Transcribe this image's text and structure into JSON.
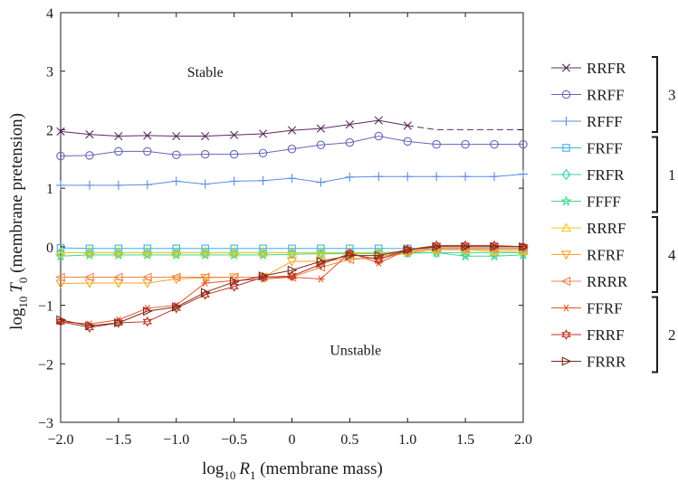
{
  "chart_data": {
    "type": "line",
    "xlabel_main": "log",
    "xlabel_sub": "10",
    "xlabel_var": "R",
    "xlabel_var_sub": "1",
    "xlabel_rest": " (membrane mass)",
    "ylabel_main": "log",
    "ylabel_sub": "10",
    "ylabel_var": "T",
    "ylabel_var_sub": "0",
    "ylabel_rest": " (membrane pretension)",
    "xlim": [
      -2.0,
      2.0
    ],
    "ylim": [
      -3,
      4
    ],
    "x_tick_values": [
      -2.0,
      -1.5,
      -1.0,
      -0.5,
      0,
      0.5,
      1.0,
      1.5,
      2.0
    ],
    "x_tick_labels": [
      "−2.0",
      "−1.5",
      "−1.0",
      "−0.5",
      "0",
      "0.5",
      "1.0",
      "1.5",
      "2.0"
    ],
    "y_tick_values": [
      -3,
      -2,
      -1,
      0,
      1,
      2,
      3,
      4
    ],
    "y_tick_labels": [
      "−3",
      "−2",
      "−1",
      "0",
      "1",
      "2",
      "3",
      "4"
    ],
    "grid": false,
    "legend_position": "right-outside",
    "annotations": [
      {
        "text": "Stable",
        "x": -0.75,
        "y": 2.9
      },
      {
        "text": "Unstable",
        "x": 0.55,
        "y": -1.85
      }
    ],
    "x": [
      -2.0,
      -1.75,
      -1.5,
      -1.25,
      -1.0,
      -0.75,
      -0.5,
      -0.25,
      0,
      0.25,
      0.5,
      0.75,
      1.0,
      1.25,
      1.5,
      1.75,
      2.0
    ],
    "series": [
      {
        "name": "RRFR",
        "group": "3",
        "color": "#5b2a5e",
        "marker": "x",
        "dash_from_x": 1.0,
        "values": [
          1.97,
          1.92,
          1.89,
          1.9,
          1.89,
          1.89,
          1.91,
          1.93,
          1.99,
          2.02,
          2.09,
          2.16,
          2.07,
          2.0,
          2.0,
          2.0,
          2.0
        ]
      },
      {
        "name": "RRFF",
        "group": "3",
        "color": "#6666b8",
        "marker": "circle",
        "values": [
          1.55,
          1.56,
          1.63,
          1.63,
          1.57,
          1.58,
          1.58,
          1.6,
          1.67,
          1.74,
          1.78,
          1.89,
          1.8,
          1.75,
          1.75,
          1.75,
          1.75
        ]
      },
      {
        "name": "RFFF",
        "group": "3",
        "color": "#5b8de0",
        "marker": "plus",
        "values": [
          1.05,
          1.05,
          1.05,
          1.06,
          1.12,
          1.07,
          1.12,
          1.13,
          1.17,
          1.1,
          1.19,
          1.2,
          1.2,
          1.2,
          1.2,
          1.2,
          1.24
        ]
      },
      {
        "name": "FRFF",
        "group": "1",
        "color": "#3fb0e0",
        "marker": "square",
        "values": [
          -0.02,
          -0.03,
          -0.03,
          -0.03,
          -0.03,
          -0.03,
          -0.03,
          -0.03,
          -0.03,
          -0.03,
          -0.03,
          -0.03,
          -0.03,
          -0.03,
          -0.03,
          -0.03,
          -0.03
        ]
      },
      {
        "name": "FRFR",
        "group": "1",
        "color": "#35d0b5",
        "marker": "diamond",
        "values": [
          -0.1,
          -0.1,
          -0.1,
          -0.1,
          -0.1,
          -0.1,
          -0.1,
          -0.1,
          -0.1,
          -0.1,
          -0.1,
          -0.1,
          -0.1,
          -0.1,
          -0.1,
          -0.1,
          -0.1
        ]
      },
      {
        "name": "FFFF",
        "group": "1",
        "color": "#3ed68a",
        "marker": "star",
        "values": [
          -0.16,
          -0.14,
          -0.14,
          -0.14,
          -0.14,
          -0.14,
          -0.14,
          -0.14,
          -0.13,
          -0.12,
          -0.12,
          -0.12,
          -0.11,
          -0.1,
          -0.16,
          -0.16,
          -0.14
        ]
      },
      {
        "name": "RRRF",
        "group": "4",
        "color": "#f2c81c",
        "marker": "triangle-up",
        "values": [
          -0.1,
          -0.1,
          -0.1,
          -0.1,
          -0.1,
          -0.1,
          -0.1,
          -0.1,
          -0.1,
          -0.1,
          -0.1,
          -0.1,
          -0.08,
          -0.05,
          -0.05,
          -0.08,
          -0.08
        ]
      },
      {
        "name": "RFRF",
        "group": "4",
        "color": "#f5a623",
        "marker": "triangle-down",
        "values": [
          -0.63,
          -0.62,
          -0.62,
          -0.62,
          -0.55,
          -0.53,
          -0.52,
          -0.52,
          -0.25,
          -0.25,
          -0.2,
          -0.2,
          -0.1,
          -0.05,
          -0.05,
          -0.05,
          -0.05
        ]
      },
      {
        "name": "RRRR",
        "group": "4",
        "color": "#ee8550",
        "marker": "triangle-left",
        "values": [
          -0.52,
          -0.52,
          -0.52,
          -0.52,
          -0.52,
          -0.52,
          -0.52,
          -0.52,
          -0.52,
          -0.35,
          -0.22,
          -0.18,
          -0.07,
          -0.03,
          -0.03,
          -0.03,
          -0.03
        ]
      },
      {
        "name": "FFRF",
        "group": "2",
        "color": "#e5532a",
        "marker": "asterisk",
        "values": [
          -1.28,
          -1.32,
          -1.25,
          -1.05,
          -1.0,
          -0.62,
          -0.58,
          -0.55,
          -0.52,
          -0.55,
          -0.1,
          -0.28,
          -0.05,
          0.02,
          0.02,
          0.02,
          0.0
        ]
      },
      {
        "name": "FRRF",
        "group": "2",
        "color": "#b8301f",
        "marker": "hexagram",
        "values": [
          -1.28,
          -1.38,
          -1.3,
          -1.28,
          -1.05,
          -0.82,
          -0.68,
          -0.52,
          -0.5,
          -0.3,
          -0.12,
          -0.22,
          -0.05,
          0.02,
          0.02,
          0.02,
          0.0
        ]
      },
      {
        "name": "FRRR",
        "group": "2",
        "color": "#7a2a1e",
        "marker": "triangle-right",
        "values": [
          -1.25,
          -1.35,
          -1.3,
          -1.1,
          -1.03,
          -0.78,
          -0.6,
          -0.5,
          -0.4,
          -0.25,
          -0.15,
          -0.15,
          -0.05,
          0.0,
          0.0,
          0.0,
          0.0
        ]
      }
    ],
    "legend_groups": [
      {
        "label": "3",
        "series": [
          "RRFR",
          "RRFF",
          "RFFF"
        ]
      },
      {
        "label": "1",
        "series": [
          "FRFF",
          "FRFR",
          "FFFF"
        ]
      },
      {
        "label": "4",
        "series": [
          "RRRF",
          "RFRF",
          "RRRR"
        ]
      },
      {
        "label": "2",
        "series": [
          "FFRF",
          "FRRF",
          "FRRR"
        ]
      }
    ]
  }
}
